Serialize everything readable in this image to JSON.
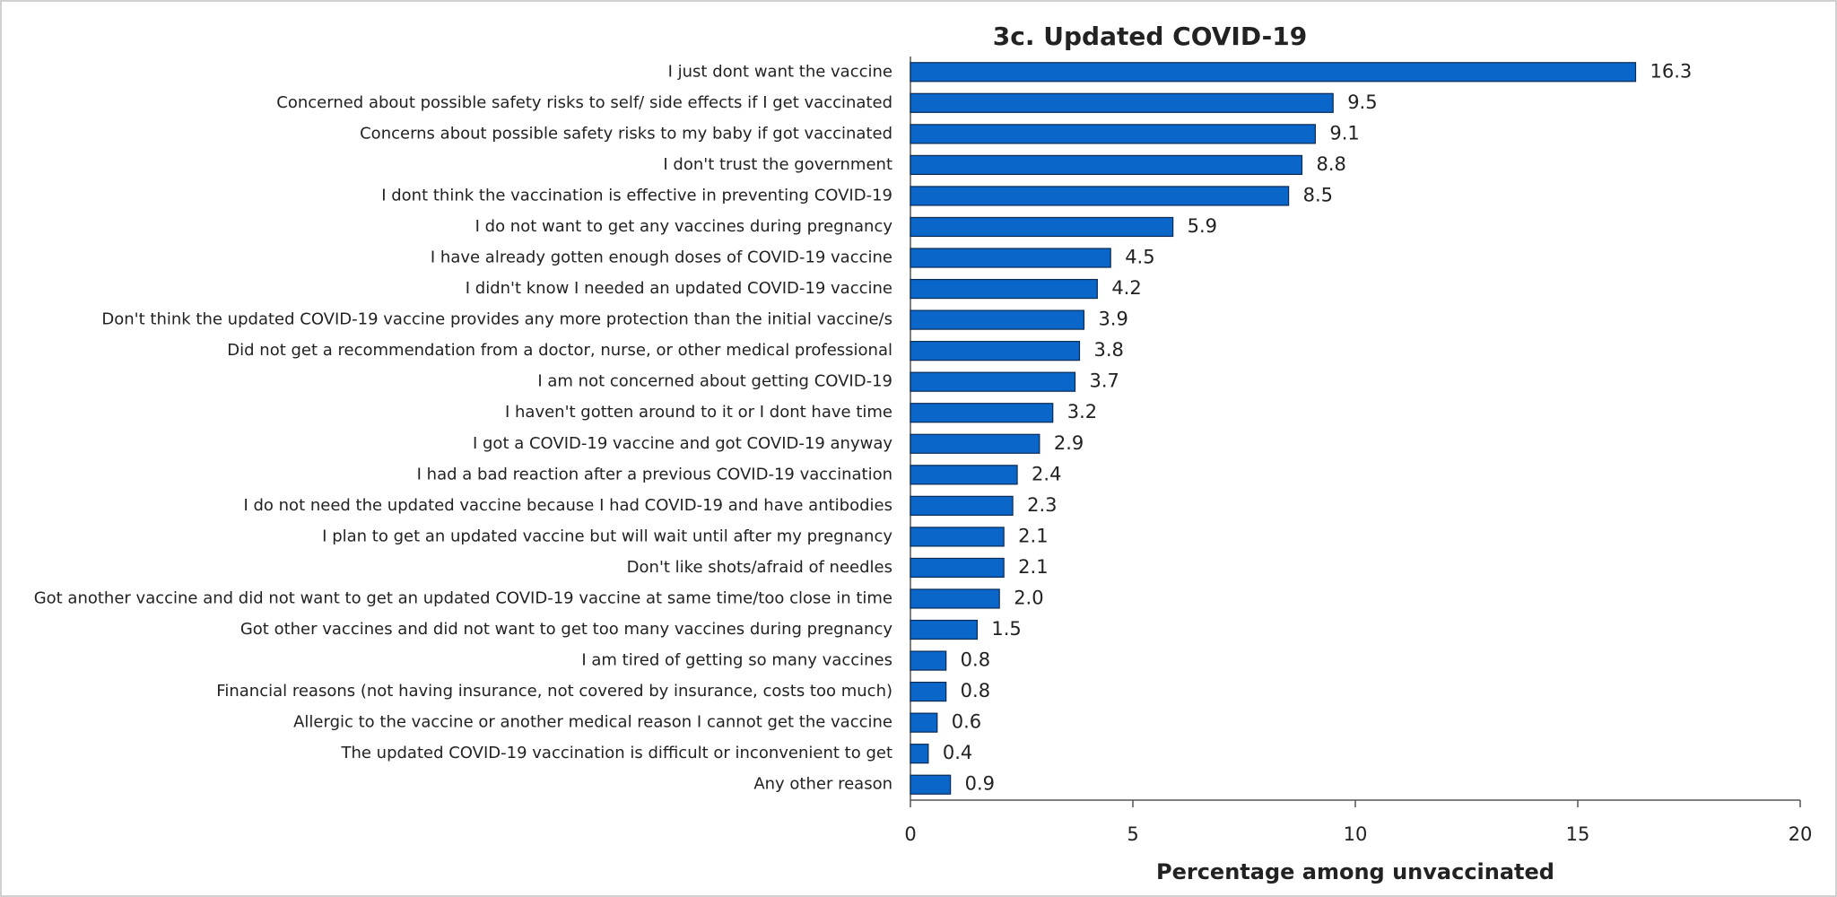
{
  "chart_data": {
    "type": "bar",
    "orientation": "horizontal",
    "title": "3c. Updated COVID-19",
    "x_label": "Percentage among unvaccinated",
    "categories": [
      "I just dont want the vaccine",
      "Concerned about possible safety risks to self/ side effects if I get vaccinated",
      "Concerns about possible safety risks to my baby if got vaccinated",
      "I don't trust the government",
      "I dont think the vaccination is effective in preventing COVID-19",
      "I do not want to get any vaccines during pregnancy",
      "I have already gotten enough doses of COVID-19 vaccine",
      "I didn't know I needed an updated COVID-19 vaccine",
      "Don't think the updated COVID-19 vaccine provides any more protection than the initial vaccine/s",
      "Did not get a recommendation from a doctor, nurse, or other medical professional",
      "I am not concerned about getting COVID-19",
      "I haven't gotten around to it or I dont have time",
      "I got a COVID-19 vaccine and got COVID-19 anyway",
      "I had a bad reaction after a previous COVID-19 vaccination",
      "I do not need the updated vaccine because I had COVID-19 and have antibodies",
      "I plan to get an updated vaccine but will wait until after my pregnancy",
      "Don't like shots/afraid of needles",
      "Got another vaccine and did not want to get an updated COVID-19 vaccine at same time/too close in time",
      "Got other vaccines and did not want to get too many vaccines during pregnancy",
      "I am tired of getting so many vaccines",
      "Financial reasons (not having insurance, not covered by insurance, costs too much)",
      "Allergic to the vaccine or another medical reason I cannot get the vaccine",
      "The updated COVID-19 vaccination is difficult or inconvenient to get",
      "Any other reason"
    ],
    "values": [
      16.3,
      9.5,
      9.1,
      8.8,
      8.5,
      5.9,
      4.5,
      4.2,
      3.9,
      3.8,
      3.7,
      3.2,
      2.9,
      2.4,
      2.3,
      2.1,
      2.1,
      2.0,
      1.5,
      0.8,
      0.8,
      0.6,
      0.4,
      0.9
    ],
    "value_labels": [
      "16.3",
      "9.5",
      "9.1",
      "8.8",
      "8.5",
      "5.9",
      "4.5",
      "4.2",
      "3.9",
      "3.8",
      "3.7",
      "3.2",
      "2.9",
      "2.4",
      "2.3",
      "2.1",
      "2.1",
      "2.0",
      "1.5",
      "0.8",
      "0.8",
      "0.6",
      "0.4",
      "0.9"
    ],
    "color": "#0a66c8",
    "xlim": [
      0,
      20
    ],
    "xticks": [
      0,
      5,
      10,
      15,
      20
    ],
    "grid": false
  }
}
